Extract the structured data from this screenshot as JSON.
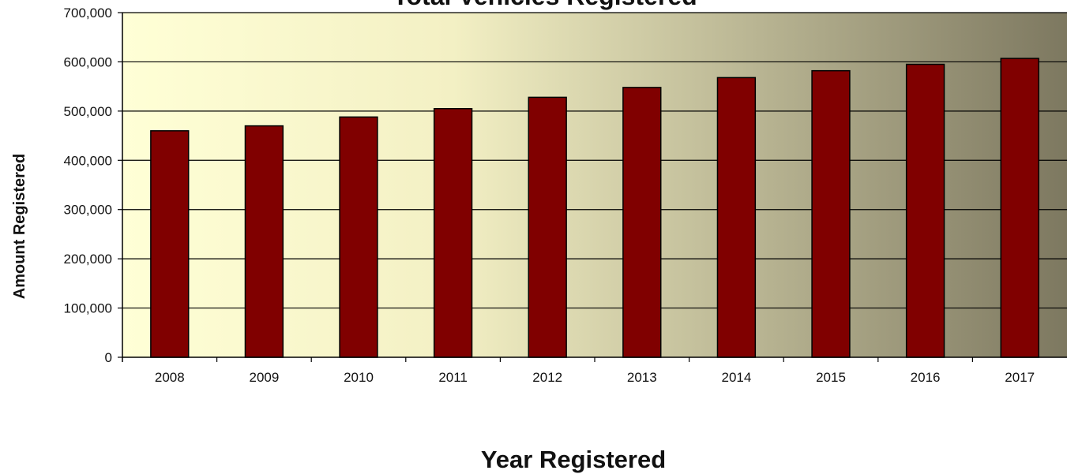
{
  "chart_data": {
    "type": "bar",
    "title": "Total Vehicles Registered",
    "xlabel": "Year Registered",
    "ylabel": "Amount Registered",
    "categories": [
      "2008",
      "2009",
      "2010",
      "2011",
      "2012",
      "2013",
      "2014",
      "2015",
      "2016",
      "2017"
    ],
    "values": [
      460000,
      470000,
      488000,
      505000,
      528000,
      548000,
      568000,
      582000,
      595000,
      607000
    ],
    "ylim": [
      0,
      700000
    ],
    "yticks": [
      0,
      100000,
      200000,
      300000,
      400000,
      500000,
      600000,
      700000
    ],
    "ytick_labels": [
      "0",
      "100,000",
      "200,000",
      "300,000",
      "400,000",
      "500,000",
      "600,000",
      "700,000"
    ],
    "grid": true,
    "bar_color": "#800000",
    "background_gradient": [
      "#ffffd6",
      "#f3f0c4",
      "#7d7860"
    ]
  }
}
